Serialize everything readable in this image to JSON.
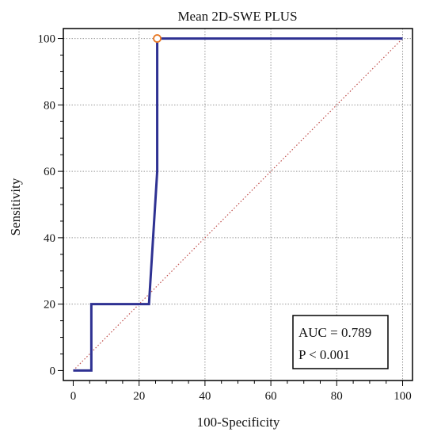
{
  "chart_data": {
    "type": "line",
    "title": "Mean 2D-SWE PLUS",
    "xlabel": "100-Specificity",
    "ylabel": "Sensitivity",
    "xlim": [
      -3,
      103
    ],
    "ylim": [
      -3,
      103
    ],
    "x_ticks": [
      0,
      20,
      40,
      60,
      80,
      100
    ],
    "y_ticks": [
      0,
      20,
      40,
      60,
      80,
      100
    ],
    "grid": true,
    "series": [
      {
        "color": "#2e3192",
        "x": [
          0,
          5.5,
          5.5,
          23,
          25.5,
          25.5,
          100
        ],
        "y": [
          0,
          0,
          20,
          20,
          60,
          100,
          100
        ]
      }
    ],
    "reference_line": {
      "x": [
        0,
        100
      ],
      "y": [
        0,
        100
      ],
      "color": "#c0504d",
      "style": "dotted"
    },
    "optimal_point": {
      "x": 25.5,
      "y": 100,
      "color": "#e87722"
    },
    "annotations": [
      "AUC = 0.789",
      "P < 0.001"
    ]
  }
}
